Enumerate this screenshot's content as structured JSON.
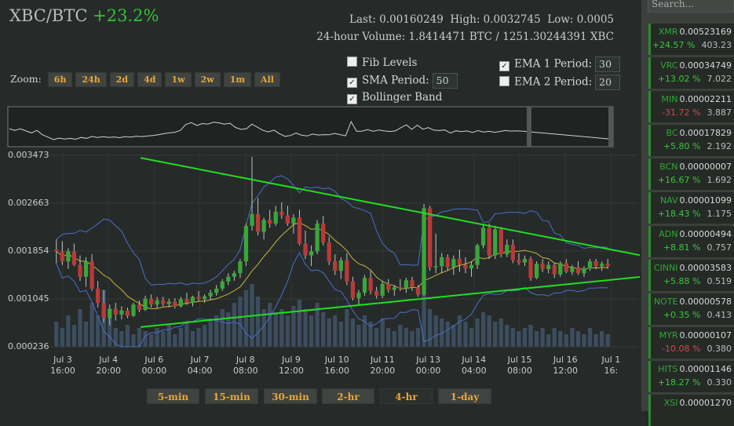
{
  "header": {
    "pair": "XBC/BTC",
    "change": "+23.2%"
  },
  "stats": {
    "line1": "Last: 0.00160249  High: 0.0032745  Low: 0.0005",
    "line2": "24-hour Volume: 1.8414471 BTC / 1251.30244391 XBC"
  },
  "zoom": {
    "label": "Zoom:",
    "buttons": [
      "6h",
      "24h",
      "2d",
      "4d",
      "1w",
      "2w",
      "1m",
      "All"
    ]
  },
  "options": {
    "fib": {
      "label": "Fib Levels",
      "checked": false
    },
    "sma": {
      "label": "SMA Period:",
      "checked": true,
      "value": "50"
    },
    "bollinger": {
      "label": "Bollinger Band",
      "checked": true
    },
    "ema1": {
      "label": "EMA 1 Period:",
      "checked": true,
      "value": "30"
    },
    "ema2": {
      "label": "EMA 2 Period:",
      "checked": false,
      "value": "20"
    }
  },
  "search": {
    "placeholder": "Search..."
  },
  "markets": [
    {
      "sym": "XMR",
      "price": "0.00523169",
      "chg": "+24.57 %",
      "vol": "403.23",
      "dir": "up"
    },
    {
      "sym": "VRC",
      "price": "0.00034749",
      "chg": "+13.02 %",
      "vol": "7.022",
      "dir": "up"
    },
    {
      "sym": "MIN",
      "price": "0.00002211",
      "chg": "-31.72 %",
      "vol": "3.887",
      "dir": "down"
    },
    {
      "sym": "BC",
      "price": "0.00017829",
      "chg": "+5.80 %",
      "vol": "2.192",
      "dir": "up"
    },
    {
      "sym": "BCN",
      "price": "0.00000007",
      "chg": "+16.67 %",
      "vol": "1.692",
      "dir": "up"
    },
    {
      "sym": "NAV",
      "price": "0.00001099",
      "chg": "+18.43 %",
      "vol": "1.175",
      "dir": "up"
    },
    {
      "sym": "ADN",
      "price": "0.00000494",
      "chg": "+8.81 %",
      "vol": "0.757",
      "dir": "up"
    },
    {
      "sym": "CINNI",
      "price": "0.00003583",
      "chg": "+5.88 %",
      "vol": "0.519",
      "dir": "up"
    },
    {
      "sym": "NOTE",
      "price": "0.00000578",
      "chg": "+0.35 %",
      "vol": "0.413",
      "dir": "up"
    },
    {
      "sym": "MYR",
      "price": "0.00000107",
      "chg": "-10.08 %",
      "vol": "0.380",
      "dir": "down"
    },
    {
      "sym": "HITS",
      "price": "0.00001146",
      "chg": "+18.27 %",
      "vol": "0.330",
      "dir": "up"
    },
    {
      "sym": "XSI",
      "price": "0.00001270",
      "chg": "",
      "vol": "",
      "dir": "up"
    }
  ],
  "periods": [
    "5-min",
    "15-min",
    "30-min",
    "2-hr",
    "4-hr",
    "1-day"
  ],
  "active_period": "4-hr",
  "colors": {
    "up": "#3aa63a",
    "down": "#b83a3a",
    "trend": "#22dd22",
    "sma": "#c8b43a",
    "band": "#4a6ec8",
    "volume": "#3c4d5e"
  },
  "chart_data": {
    "type": "candlestick",
    "ylim": [
      0.000236,
      0.003473
    ],
    "yticks": [
      "0.003473",
      "0.002663",
      "0.001854",
      "0.001045",
      "0.000236"
    ],
    "xticks": [
      [
        "Jul 3",
        "16:00"
      ],
      [
        "Jul 4",
        "20:00"
      ],
      [
        "Jul 6",
        "00:00"
      ],
      [
        "Jul 7",
        "04:00"
      ],
      [
        "Jul 8",
        "08:00"
      ],
      [
        "Jul 9",
        "12:00"
      ],
      [
        "Jul 10",
        "16:00"
      ],
      [
        "Jul 11",
        "20:00"
      ],
      [
        "Jul 13",
        "00:00"
      ],
      [
        "Jul 14",
        "04:00"
      ],
      [
        "Jul 15",
        "08:00"
      ],
      [
        "Jul 16",
        "12:00"
      ],
      [
        "Jul 1",
        "16:"
      ]
    ],
    "candles": [
      [
        0.00188,
        0.00205,
        0.00165,
        0.00185
      ],
      [
        0.00185,
        0.00202,
        0.00162,
        0.00168
      ],
      [
        0.00168,
        0.0019,
        0.00155,
        0.00185
      ],
      [
        0.00185,
        0.00198,
        0.0016,
        0.00162
      ],
      [
        0.00162,
        0.00178,
        0.00135,
        0.00142
      ],
      [
        0.00142,
        0.00175,
        0.00125,
        0.00168
      ],
      [
        0.00168,
        0.0018,
        0.00118,
        0.00122
      ],
      [
        0.00122,
        0.00135,
        0.0009,
        0.00098
      ],
      [
        0.00098,
        0.0012,
        0.00065,
        0.00072
      ],
      [
        0.00072,
        0.00095,
        0.0006,
        0.00088
      ],
      [
        0.00088,
        0.00098,
        0.00068,
        0.00078
      ],
      [
        0.00078,
        0.00092,
        0.0007,
        0.00085
      ],
      [
        0.00085,
        0.0009,
        0.00072,
        0.00076
      ],
      [
        0.00076,
        0.00098,
        0.00074,
        0.00095
      ],
      [
        0.00095,
        0.00102,
        0.00082,
        0.00086
      ],
      [
        0.00086,
        0.0011,
        0.00084,
        0.00105
      ],
      [
        0.00105,
        0.00112,
        0.0009,
        0.00095
      ],
      [
        0.00095,
        0.00108,
        0.00088,
        0.00102
      ],
      [
        0.00102,
        0.00108,
        0.00092,
        0.00096
      ],
      [
        0.00096,
        0.00105,
        0.0009,
        0.001
      ],
      [
        0.001,
        0.00106,
        0.00088,
        0.00092
      ],
      [
        0.00092,
        0.00108,
        0.0009,
        0.00104
      ],
      [
        0.00104,
        0.00115,
        0.00094,
        0.00098
      ],
      [
        0.00098,
        0.0011,
        0.00092,
        0.00108
      ],
      [
        0.00108,
        0.00118,
        0.001,
        0.00104
      ],
      [
        0.00104,
        0.00112,
        0.00098,
        0.00109
      ],
      [
        0.00109,
        0.0012,
        0.00103,
        0.00115
      ],
      [
        0.00115,
        0.00128,
        0.0011,
        0.00122
      ],
      [
        0.00122,
        0.00138,
        0.00118,
        0.00134
      ],
      [
        0.00134,
        0.00148,
        0.00128,
        0.00142
      ],
      [
        0.00142,
        0.00152,
        0.00135,
        0.00148
      ],
      [
        0.00148,
        0.00172,
        0.0014,
        0.00168
      ],
      [
        0.00168,
        0.00232,
        0.0016,
        0.00228
      ],
      [
        0.00228,
        0.00345,
        0.0022,
        0.00248
      ],
      [
        0.00248,
        0.00275,
        0.00212,
        0.00218
      ],
      [
        0.00218,
        0.00242,
        0.00205,
        0.00238
      ],
      [
        0.00238,
        0.00255,
        0.00225,
        0.00232
      ],
      [
        0.00232,
        0.00262,
        0.00228,
        0.00252
      ],
      [
        0.00252,
        0.00268,
        0.0024,
        0.00246
      ],
      [
        0.00246,
        0.00262,
        0.00228,
        0.00232
      ],
      [
        0.00232,
        0.00248,
        0.00215,
        0.00242
      ],
      [
        0.00242,
        0.00255,
        0.00195,
        0.00198
      ],
      [
        0.00198,
        0.0022,
        0.00172,
        0.00178
      ],
      [
        0.00178,
        0.00195,
        0.0016,
        0.00185
      ],
      [
        0.00185,
        0.00238,
        0.0018,
        0.00232
      ],
      [
        0.00232,
        0.00245,
        0.00195,
        0.002
      ],
      [
        0.002,
        0.0021,
        0.00162,
        0.00168
      ],
      [
        0.00168,
        0.0018,
        0.00145,
        0.00152
      ],
      [
        0.00152,
        0.00175,
        0.00138,
        0.0017
      ],
      [
        0.0017,
        0.00182,
        0.00128,
        0.00134
      ],
      [
        0.00134,
        0.00142,
        0.00102,
        0.00106
      ],
      [
        0.00106,
        0.0012,
        0.00095,
        0.00115
      ],
      [
        0.00115,
        0.00145,
        0.0011,
        0.0014
      ],
      [
        0.0014,
        0.00152,
        0.00112,
        0.00118
      ],
      [
        0.00118,
        0.00125,
        0.00105,
        0.0011
      ],
      [
        0.0011,
        0.00135,
        0.00106,
        0.0013
      ],
      [
        0.0013,
        0.00138,
        0.00115,
        0.0012
      ],
      [
        0.0012,
        0.00128,
        0.0011,
        0.00124
      ],
      [
        0.00124,
        0.00138,
        0.00118,
        0.00122
      ],
      [
        0.00122,
        0.0014,
        0.00115,
        0.00136
      ],
      [
        0.00136,
        0.00142,
        0.00118,
        0.00124
      ],
      [
        0.00124,
        0.00128,
        0.00108,
        0.00112
      ],
      [
        0.00112,
        0.00265,
        0.0011,
        0.00258
      ],
      [
        0.00258,
        0.00262,
        0.00152,
        0.00158
      ],
      [
        0.00158,
        0.00215,
        0.00148,
        0.0016
      ],
      [
        0.0016,
        0.00182,
        0.00148,
        0.00175
      ],
      [
        0.00175,
        0.0018,
        0.00152,
        0.00158
      ],
      [
        0.00158,
        0.00178,
        0.00145,
        0.00172
      ],
      [
        0.00172,
        0.00188,
        0.0015,
        0.00162
      ],
      [
        0.00162,
        0.00175,
        0.00148,
        0.00156
      ],
      [
        0.00156,
        0.00168,
        0.00142,
        0.00162
      ],
      [
        0.00162,
        0.00198,
        0.00155,
        0.00195
      ],
      [
        0.00195,
        0.00232,
        0.0019,
        0.00225
      ],
      [
        0.00225,
        0.00232,
        0.00172,
        0.00178
      ],
      [
        0.00178,
        0.00228,
        0.00172,
        0.00222
      ],
      [
        0.00222,
        0.00226,
        0.00175,
        0.0018
      ],
      [
        0.0018,
        0.00205,
        0.00175,
        0.00196
      ],
      [
        0.00196,
        0.00205,
        0.00165,
        0.0017
      ],
      [
        0.0017,
        0.00182,
        0.00162,
        0.00166
      ],
      [
        0.00166,
        0.00178,
        0.0016,
        0.00172
      ],
      [
        0.00172,
        0.00176,
        0.00135,
        0.0014
      ],
      [
        0.0014,
        0.00168,
        0.00138,
        0.00164
      ],
      [
        0.00164,
        0.00172,
        0.0015,
        0.00155
      ],
      [
        0.00155,
        0.00168,
        0.00148,
        0.00162
      ],
      [
        0.00162,
        0.00165,
        0.0014,
        0.00146
      ],
      [
        0.00146,
        0.00168,
        0.00142,
        0.00165
      ],
      [
        0.00165,
        0.00172,
        0.00148,
        0.0015
      ],
      [
        0.0015,
        0.00162,
        0.00145,
        0.00158
      ],
      [
        0.00158,
        0.00168,
        0.00145,
        0.00148
      ],
      [
        0.00148,
        0.0016,
        0.00142,
        0.00156
      ],
      [
        0.00156,
        0.00172,
        0.00152,
        0.00168
      ],
      [
        0.00168,
        0.00172,
        0.00155,
        0.0016
      ],
      [
        0.0016,
        0.00168,
        0.00152,
        0.00164
      ],
      [
        0.00164,
        0.00172,
        0.00155,
        0.0016
      ]
    ],
    "volume": [
      0.4,
      0.3,
      0.5,
      0.35,
      0.6,
      0.4,
      0.7,
      0.5,
      0.9,
      0.6,
      0.3,
      0.25,
      0.35,
      0.2,
      0.3,
      0.25,
      0.2,
      0.3,
      0.25,
      0.35,
      0.2,
      0.3,
      0.4,
      0.25,
      0.3,
      0.35,
      0.45,
      0.5,
      0.6,
      0.55,
      0.7,
      0.8,
      0.9,
      1.0,
      0.8,
      0.6,
      0.7,
      0.55,
      0.6,
      0.5,
      0.65,
      0.75,
      0.6,
      0.5,
      0.7,
      0.55,
      0.45,
      0.5,
      0.4,
      0.6,
      0.45,
      0.35,
      0.5,
      0.4,
      0.3,
      0.45,
      0.3,
      0.25,
      0.35,
      0.3,
      0.25,
      0.3,
      0.85,
      0.6,
      0.5,
      0.45,
      0.4,
      0.35,
      0.5,
      0.4,
      0.3,
      0.45,
      0.55,
      0.5,
      0.4,
      0.45,
      0.35,
      0.3,
      0.25,
      0.3,
      0.35,
      0.25,
      0.3,
      0.2,
      0.3,
      0.25,
      0.2,
      0.3,
      0.25,
      0.2,
      0.3,
      0.2,
      0.25,
      0.2
    ],
    "trendlines": [
      [
        [
          0.1565,
          0.00343
        ],
        [
          1.0,
          0.00172
        ]
      ],
      [
        [
          0.1565,
          0.00057
        ],
        [
          1.0,
          0.00145
        ]
      ]
    ]
  }
}
